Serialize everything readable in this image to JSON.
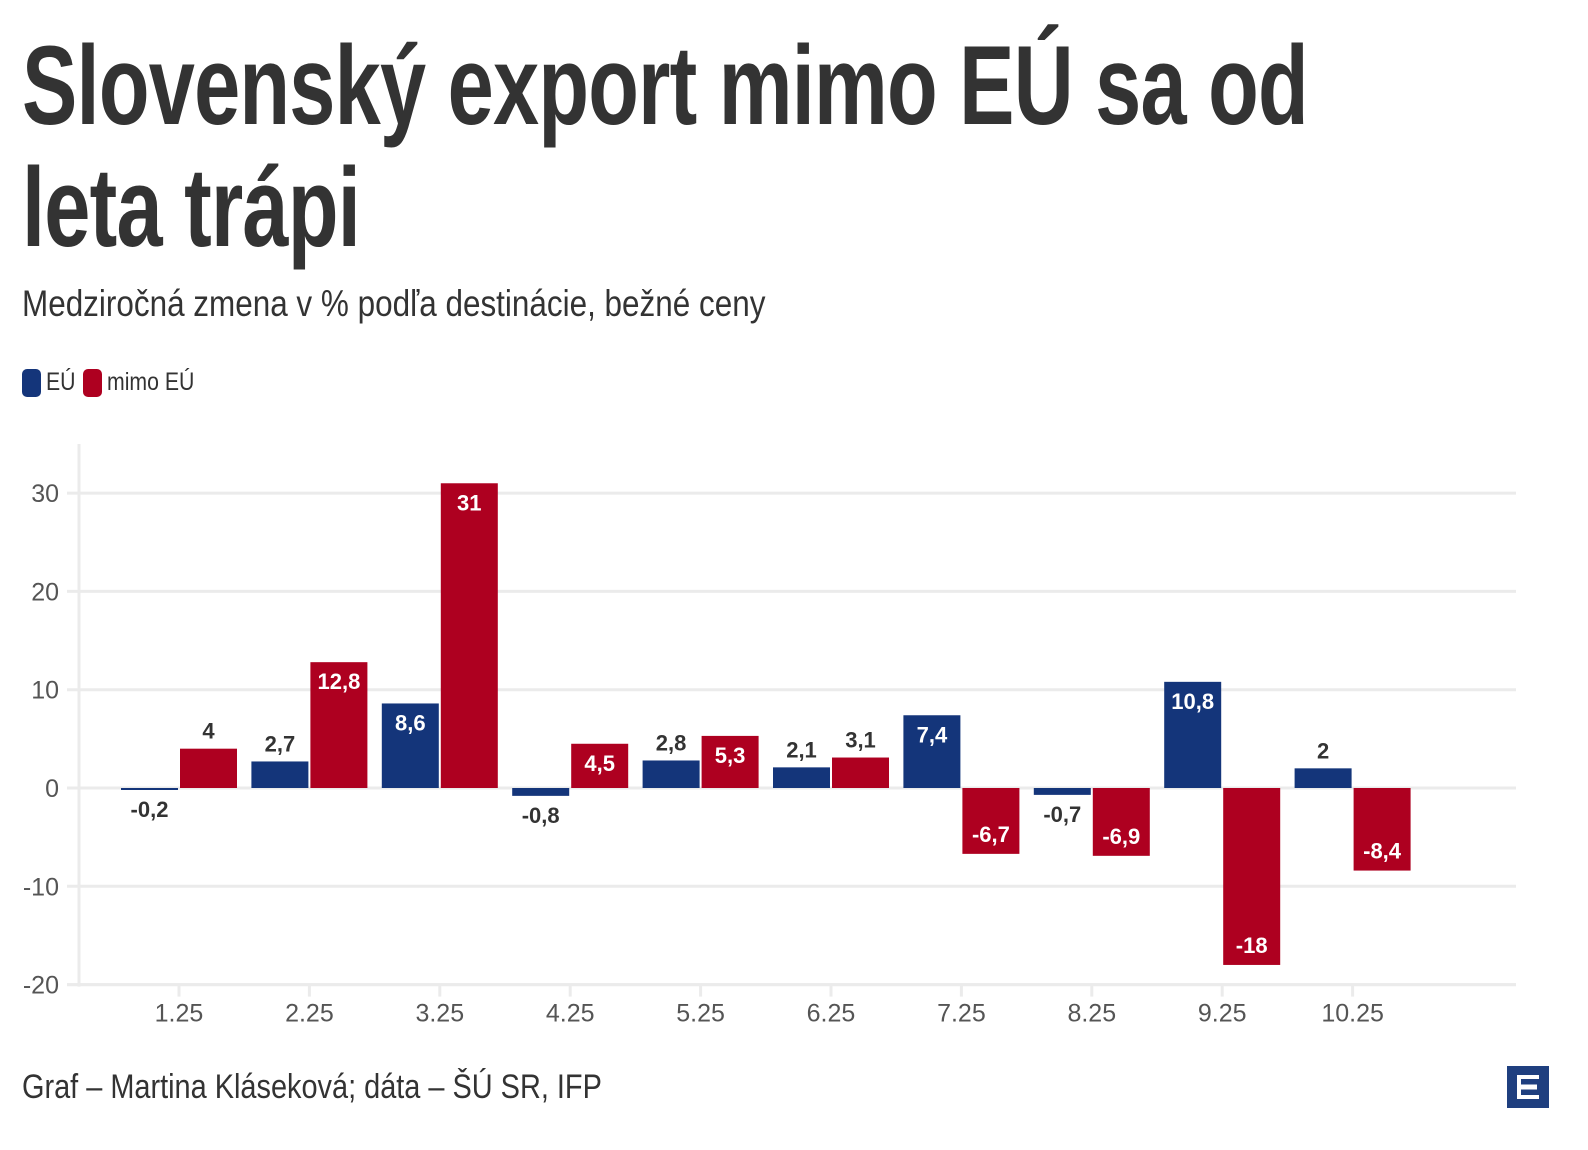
{
  "header": {
    "title_line1": "Slovenský export mimo EÚ sa od",
    "title_line2": "leta trápi",
    "subtitle": "Medziročná zmena v % podľa destinácie, bežné ceny"
  },
  "legend": [
    {
      "label": "EÚ",
      "color": "#14357a"
    },
    {
      "label": "mimo EÚ",
      "color": "#ae0020"
    }
  ],
  "footer": {
    "credit": "Graf – Martina Kláseková; dáta – ŠÚ SR, IFP",
    "logo_icon": "e-logo-icon"
  },
  "chart_data": {
    "type": "bar",
    "title": "Slovenský export mimo EÚ sa od leta trápi",
    "subtitle": "Medziročná zmena v % podľa destinácie, bežné ceny",
    "xlabel": "",
    "ylabel": "",
    "categories": [
      "1.25",
      "2.25",
      "3.25",
      "4.25",
      "5.25",
      "6.25",
      "7.25",
      "8.25",
      "9.25",
      "10.25"
    ],
    "series": [
      {
        "name": "EÚ",
        "color": "#14357a",
        "values": [
          -0.2,
          2.7,
          8.6,
          -0.8,
          2.8,
          2.1,
          7.4,
          -0.7,
          10.8,
          2
        ],
        "labels": [
          "-0,2",
          "2,7",
          "8,6",
          "-0,8",
          "2,8",
          "2,1",
          "7,4",
          "-0,7",
          "10,8",
          "2"
        ]
      },
      {
        "name": "mimo EÚ",
        "color": "#ae0020",
        "values": [
          4,
          12.8,
          31,
          4.5,
          5.3,
          3.1,
          -6.7,
          -6.9,
          -18,
          -8.4
        ],
        "labels": [
          "4",
          "12,8",
          "31",
          "4,5",
          "5,3",
          "3,1",
          "-6,7",
          "-6,9",
          "-18",
          "-8,4"
        ]
      }
    ],
    "ylim": [
      -20,
      35
    ],
    "yticks": [
      30,
      20,
      10,
      0,
      -10,
      -20
    ],
    "grid": true,
    "legend_position": "top-left"
  }
}
